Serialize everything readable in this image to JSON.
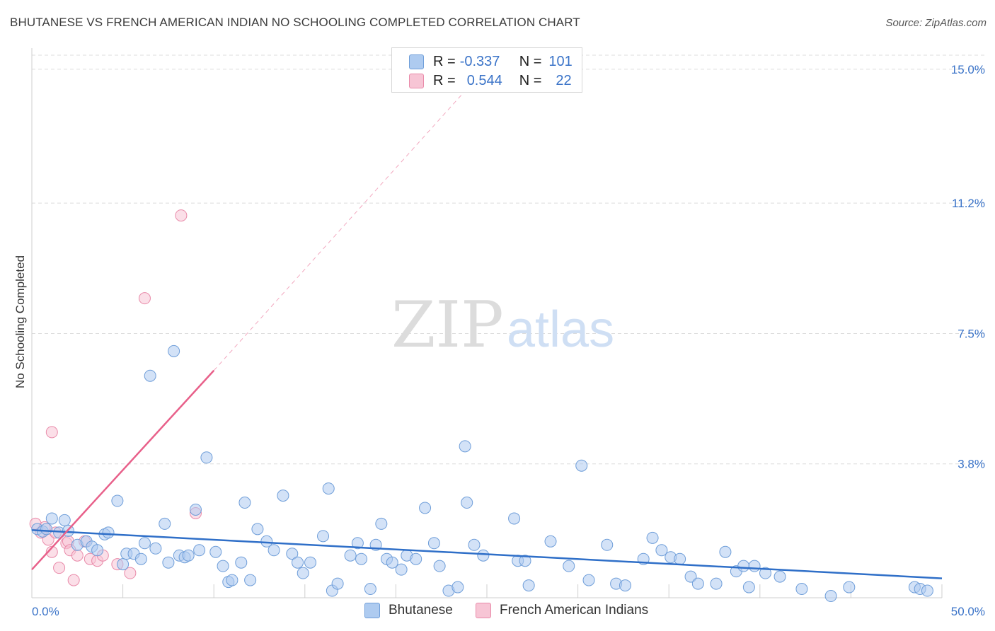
{
  "header": {
    "title": "BHUTANESE VS FRENCH AMERICAN INDIAN NO SCHOOLING COMPLETED CORRELATION CHART",
    "source": "Source: ZipAtlas.com"
  },
  "watermark": {
    "zip": "ZIP",
    "atlas": "atlas"
  },
  "legend_stats": {
    "r_label": "R =",
    "n_label": "N =",
    "rows": [
      {
        "name": "Bhutanese",
        "r": "-0.337",
        "n": "101"
      },
      {
        "name": "French American Indians",
        "r": "0.544",
        "n": "22"
      }
    ]
  },
  "colors": {
    "blue_fill": "#aecbf0",
    "blue_stroke": "#6f9ed9",
    "blue_line": "#2f6fc8",
    "pink_fill": "#f7c5d5",
    "pink_stroke": "#e98aa9",
    "pink_line": "#e8608a",
    "axis_label": "#3a73c8",
    "grid": "#dcdcdc"
  },
  "chart_data": {
    "type": "scatter",
    "title": "BHUTANESE VS FRENCH AMERICAN INDIAN NO SCHOOLING COMPLETED CORRELATION CHART",
    "xlabel": "",
    "ylabel": "No Schooling Completed",
    "xlim": [
      0,
      50
    ],
    "ylim": [
      0,
      15.4
    ],
    "x_tick_labels": [
      "0.0%",
      "50.0%"
    ],
    "y_ticks": [
      3.8,
      7.5,
      11.2,
      15.0
    ],
    "y_tick_labels": [
      "3.8%",
      "7.5%",
      "11.2%",
      "15.0%"
    ],
    "grid": true,
    "legend_position": "bottom-center",
    "series": [
      {
        "name": "Bhutanese",
        "color": "#6f9ed9",
        "trend": {
          "x": [
            0,
            50
          ],
          "y": [
            1.92,
            0.55
          ]
        },
        "points": [
          [
            0.3,
            1.95
          ],
          [
            0.6,
            1.88
          ],
          [
            0.8,
            1.95
          ],
          [
            1.1,
            2.25
          ],
          [
            1.5,
            1.85
          ],
          [
            1.8,
            2.2
          ],
          [
            2.0,
            1.9
          ],
          [
            2.5,
            1.5
          ],
          [
            3.0,
            1.6
          ],
          [
            3.3,
            1.45
          ],
          [
            3.6,
            1.35
          ],
          [
            4.0,
            1.8
          ],
          [
            4.2,
            1.85
          ],
          [
            4.7,
            2.75
          ],
          [
            5.0,
            0.95
          ],
          [
            5.2,
            1.25
          ],
          [
            5.6,
            1.25
          ],
          [
            6.0,
            1.1
          ],
          [
            6.2,
            1.55
          ],
          [
            6.5,
            6.3
          ],
          [
            6.8,
            1.4
          ],
          [
            7.3,
            2.1
          ],
          [
            7.5,
            1.0
          ],
          [
            7.8,
            7.0
          ],
          [
            8.1,
            1.2
          ],
          [
            8.4,
            1.15
          ],
          [
            8.6,
            1.2
          ],
          [
            9.0,
            2.5
          ],
          [
            9.2,
            1.35
          ],
          [
            9.6,
            3.98
          ],
          [
            10.1,
            1.3
          ],
          [
            10.5,
            0.9
          ],
          [
            10.8,
            0.45
          ],
          [
            11.0,
            0.5
          ],
          [
            11.5,
            1.0
          ],
          [
            11.7,
            2.7
          ],
          [
            12.0,
            0.5
          ],
          [
            12.4,
            1.95
          ],
          [
            12.9,
            1.6
          ],
          [
            13.3,
            1.35
          ],
          [
            13.8,
            2.9
          ],
          [
            14.3,
            1.25
          ],
          [
            14.6,
            1.0
          ],
          [
            14.9,
            0.7
          ],
          [
            15.3,
            1.0
          ],
          [
            16.0,
            1.75
          ],
          [
            16.3,
            3.1
          ],
          [
            16.5,
            0.2
          ],
          [
            16.8,
            0.4
          ],
          [
            17.5,
            1.2
          ],
          [
            17.9,
            1.55
          ],
          [
            18.1,
            1.1
          ],
          [
            18.6,
            0.25
          ],
          [
            18.9,
            1.5
          ],
          [
            19.2,
            2.1
          ],
          [
            19.5,
            1.1
          ],
          [
            19.8,
            1.0
          ],
          [
            20.3,
            0.8
          ],
          [
            20.6,
            1.2
          ],
          [
            21.1,
            1.1
          ],
          [
            21.6,
            2.55
          ],
          [
            22.1,
            1.55
          ],
          [
            22.4,
            0.9
          ],
          [
            22.9,
            0.2
          ],
          [
            23.4,
            0.3
          ],
          [
            23.8,
            4.3
          ],
          [
            23.9,
            2.7
          ],
          [
            24.3,
            1.5
          ],
          [
            24.8,
            1.2
          ],
          [
            26.5,
            2.25
          ],
          [
            26.7,
            1.05
          ],
          [
            27.1,
            1.05
          ],
          [
            27.3,
            0.35
          ],
          [
            28.5,
            1.6
          ],
          [
            29.5,
            0.9
          ],
          [
            30.2,
            3.75
          ],
          [
            30.6,
            0.5
          ],
          [
            31.6,
            1.5
          ],
          [
            32.1,
            0.4
          ],
          [
            32.6,
            0.35
          ],
          [
            33.6,
            1.1
          ],
          [
            34.1,
            1.7
          ],
          [
            34.6,
            1.35
          ],
          [
            35.1,
            1.15
          ],
          [
            35.6,
            1.1
          ],
          [
            36.2,
            0.6
          ],
          [
            36.6,
            0.4
          ],
          [
            37.6,
            0.4
          ],
          [
            38.1,
            1.3
          ],
          [
            38.7,
            0.75
          ],
          [
            39.1,
            0.9
          ],
          [
            39.4,
            0.3
          ],
          [
            39.7,
            0.9
          ],
          [
            40.3,
            0.7
          ],
          [
            41.1,
            0.6
          ],
          [
            42.3,
            0.25
          ],
          [
            43.9,
            0.05
          ],
          [
            44.9,
            0.3
          ],
          [
            48.5,
            0.3
          ],
          [
            48.8,
            0.25
          ],
          [
            49.2,
            0.2
          ]
        ]
      },
      {
        "name": "French American Indians",
        "color": "#e98aa9",
        "trend": {
          "x": [
            0,
            10.0
          ],
          "y": [
            0.8,
            6.45
          ]
        },
        "trend_dashed": {
          "x": [
            10.0,
            24.0
          ],
          "y": [
            6.45,
            14.5
          ]
        },
        "points": [
          [
            0.2,
            2.1
          ],
          [
            0.5,
            1.85
          ],
          [
            0.7,
            2.0
          ],
          [
            0.9,
            1.65
          ],
          [
            1.1,
            1.3
          ],
          [
            1.1,
            4.7
          ],
          [
            1.3,
            1.85
          ],
          [
            1.5,
            0.85
          ],
          [
            1.9,
            1.55
          ],
          [
            2.0,
            1.6
          ],
          [
            2.1,
            1.35
          ],
          [
            2.3,
            0.5
          ],
          [
            2.5,
            1.2
          ],
          [
            2.9,
            1.6
          ],
          [
            3.2,
            1.1
          ],
          [
            3.6,
            1.05
          ],
          [
            3.9,
            1.2
          ],
          [
            4.7,
            0.95
          ],
          [
            5.4,
            0.7
          ],
          [
            6.2,
            8.5
          ],
          [
            8.2,
            10.85
          ],
          [
            9.0,
            2.4
          ]
        ]
      }
    ]
  },
  "bottom_legend": [
    {
      "name": "Bhutanese"
    },
    {
      "name": "French American Indians"
    }
  ]
}
